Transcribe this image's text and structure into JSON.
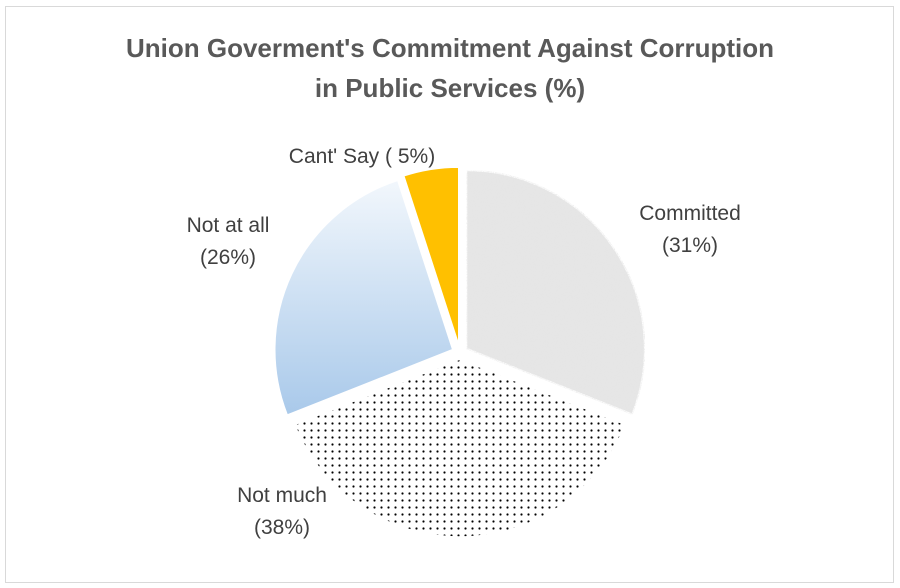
{
  "chart_data": {
    "type": "pie",
    "title_lines": [
      "Union Goverment's Commitment Against Corruption",
      "in Public Services (%)"
    ],
    "slices": [
      {
        "name": "Committed",
        "value": 31,
        "label_lines": [
          "Committed",
          "(31%)"
        ],
        "color": "#e6e6e6"
      },
      {
        "name": "Not much",
        "value": 38,
        "label_lines": [
          "Not much",
          "(38%)"
        ],
        "color": "#ffffff"
      },
      {
        "name": "Not at all",
        "value": 26,
        "label_lines": [
          "Not at all",
          "(26%)"
        ],
        "color": "#c6dcf1"
      },
      {
        "name": "Cant' Say",
        "value": 5,
        "label_lines": [
          "Cant' Say ( 5%)"
        ],
        "color": "#ffc000"
      }
    ],
    "start_angle": "12 o'clock",
    "direction": "clockwise",
    "exploded": true,
    "legend": "none"
  }
}
